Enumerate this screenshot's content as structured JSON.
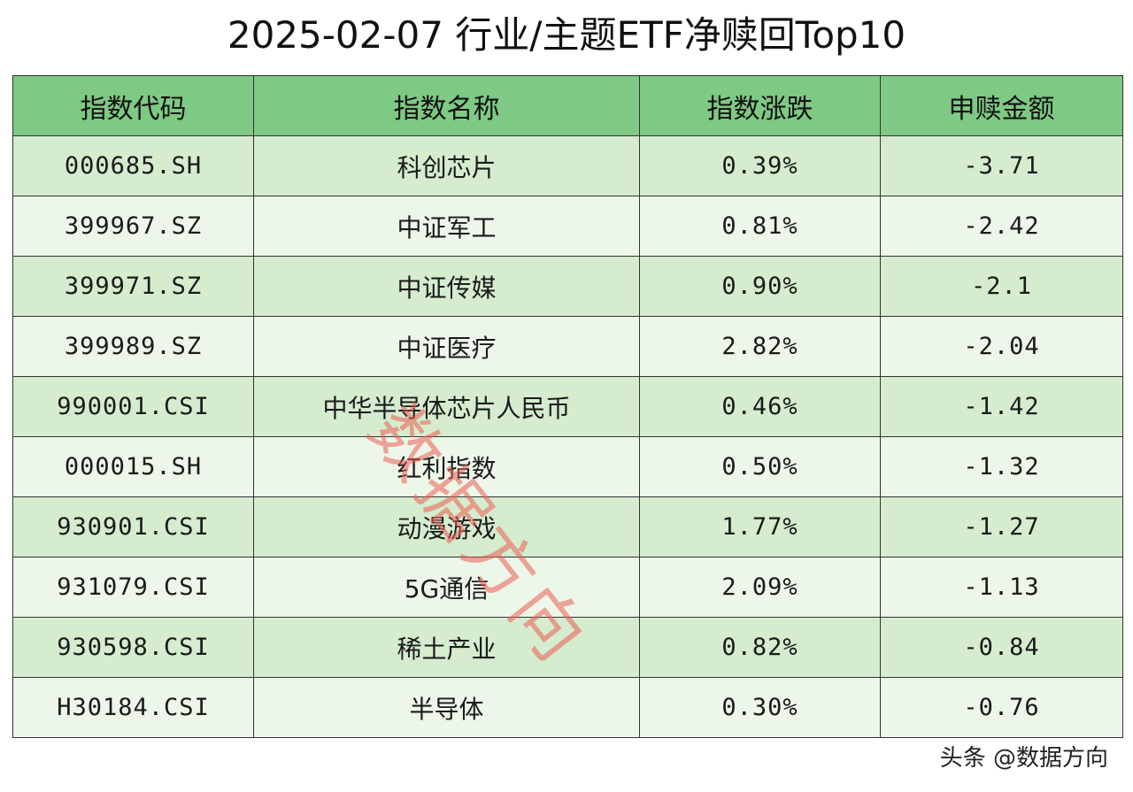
{
  "title": "2025-02-07 行业/主题ETF净赎回Top10",
  "table": {
    "headers": [
      "指数代码",
      "指数名称",
      "指数涨跌",
      "申赎金额"
    ],
    "rows": [
      [
        "000685.SH",
        "科创芯片",
        "0.39%",
        "-3.71"
      ],
      [
        "399967.SZ",
        "中证军工",
        "0.81%",
        "-2.42"
      ],
      [
        "399971.SZ",
        "中证传媒",
        "0.90%",
        "-2.1"
      ],
      [
        "399989.SZ",
        "中证医疗",
        "2.82%",
        "-2.04"
      ],
      [
        "990001.CSI",
        "中华半导体芯片人民币",
        "0.46%",
        "-1.42"
      ],
      [
        "000015.SH",
        "红利指数",
        "0.50%",
        "-1.32"
      ],
      [
        "930901.CSI",
        "动漫游戏",
        "1.77%",
        "-1.27"
      ],
      [
        "931079.CSI",
        "5G通信",
        "2.09%",
        "-1.13"
      ],
      [
        "930598.CSI",
        "稀土产业",
        "0.82%",
        "-0.84"
      ],
      [
        "H30184.CSI",
        "半导体",
        "0.30%",
        "-0.76"
      ]
    ]
  },
  "watermark": "数据方向",
  "credit": "头条 @数据方向",
  "colors": {
    "header_bg": "#7ec983",
    "row_odd_bg": "#d5eccf",
    "row_even_bg": "#ecf6e9",
    "watermark": "#ec5c52"
  }
}
